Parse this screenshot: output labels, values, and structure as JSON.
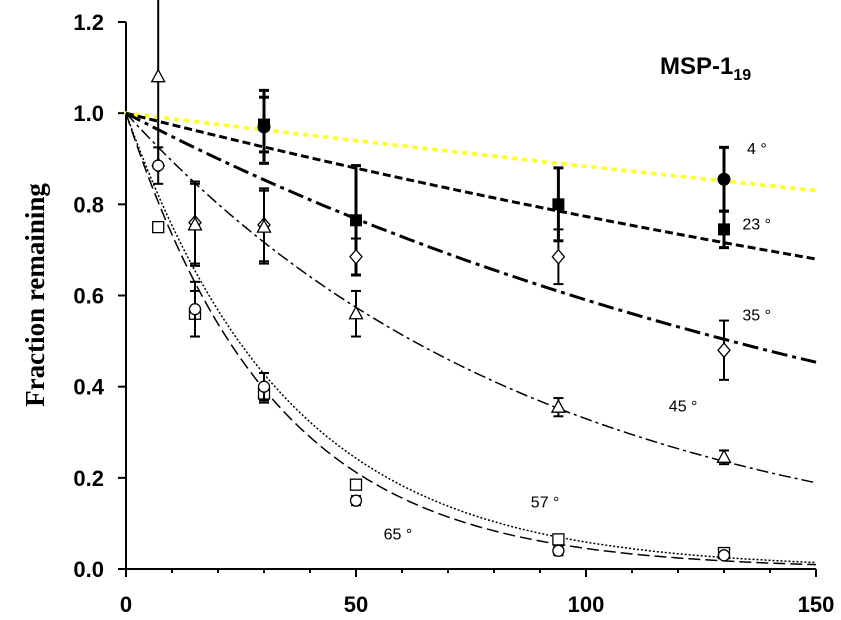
{
  "chart_data": {
    "type": "scatter",
    "title": "MSP-1",
    "title_subscript": "19",
    "xlabel": "",
    "ylabel": "Fraction remaining",
    "xlim": [
      0,
      150
    ],
    "ylim": [
      0,
      1.2
    ],
    "x_ticks": [
      0,
      50,
      100,
      150
    ],
    "y_ticks": [
      "0.0",
      "0.2",
      "0.4",
      "0.6",
      "0.8",
      "1.0",
      "1.2"
    ],
    "grid": false,
    "legend": "none",
    "series": [
      {
        "name": "4 °",
        "marker": "filled-circle",
        "line_style": "dotted",
        "line_color": "#ffff33",
        "fit_k": 0.00124,
        "points": [
          {
            "x": 30,
            "y": 0.97,
            "err": 0.08
          },
          {
            "x": 130,
            "y": 0.855,
            "err": 0.07
          }
        ]
      },
      {
        "name": "23 °",
        "marker": "filled-square",
        "line_style": "short-dash-thick",
        "line_color": "#000000",
        "fit_k": 0.00257,
        "points": [
          {
            "x": 30,
            "y": 0.975,
            "err": 0.06
          },
          {
            "x": 50,
            "y": 0.765,
            "err": 0.12
          },
          {
            "x": 94,
            "y": 0.8,
            "err": 0.08
          },
          {
            "x": 130,
            "y": 0.745,
            "err": 0.04
          }
        ]
      },
      {
        "name": "35 °",
        "marker": "open-diamond",
        "line_style": "dash-dot-thick",
        "line_color": "#000000",
        "fit_k": 0.00527,
        "points": [
          {
            "x": 7,
            "y": 0.885,
            "err": 0.04
          },
          {
            "x": 15,
            "y": 0.76,
            "err": 0.09
          },
          {
            "x": 30,
            "y": 0.755,
            "err": 0.08
          },
          {
            "x": 50,
            "y": 0.685,
            "err": 0.04
          },
          {
            "x": 94,
            "y": 0.685,
            "err": 0.06
          },
          {
            "x": 130,
            "y": 0.48,
            "err": 0.065
          }
        ]
      },
      {
        "name": "45 °",
        "marker": "open-triangle",
        "line_style": "dash-dot-thin",
        "line_color": "#000000",
        "fit_k": 0.0111,
        "points": [
          {
            "x": 7,
            "y": 1.08,
            "err": 0.2
          },
          {
            "x": 15,
            "y": 0.755,
            "err": 0.09
          },
          {
            "x": 30,
            "y": 0.75,
            "err": 0.08
          },
          {
            "x": 50,
            "y": 0.56,
            "err": 0.05
          },
          {
            "x": 94,
            "y": 0.355,
            "err": 0.02
          },
          {
            "x": 130,
            "y": 0.245,
            "err": 0.015
          }
        ]
      },
      {
        "name": "57 °",
        "marker": "open-square",
        "line_style": "dotted-dense",
        "line_color": "#000000",
        "fit_k": 0.0283,
        "points": [
          {
            "x": 7,
            "y": 0.75,
            "err": 0
          },
          {
            "x": 15,
            "y": 0.56,
            "err": 0.05
          },
          {
            "x": 30,
            "y": 0.385,
            "err": 0.02
          },
          {
            "x": 50,
            "y": 0.185,
            "err": 0.01
          },
          {
            "x": 94,
            "y": 0.065,
            "err": 0.01
          },
          {
            "x": 130,
            "y": 0.035,
            "err": 0.005
          }
        ]
      },
      {
        "name": "65 °",
        "marker": "open-circle",
        "line_style": "long-dash",
        "line_color": "#000000",
        "fit_k": 0.031,
        "points": [
          {
            "x": 7,
            "y": 0.885,
            "err": 0
          },
          {
            "x": 15,
            "y": 0.57,
            "err": 0.06
          },
          {
            "x": 30,
            "y": 0.4,
            "err": 0.03
          },
          {
            "x": 50,
            "y": 0.15,
            "err": 0.01
          },
          {
            "x": 94,
            "y": 0.04,
            "err": 0.01
          },
          {
            "x": 130,
            "y": 0.03,
            "err": 0.005
          }
        ]
      }
    ]
  }
}
